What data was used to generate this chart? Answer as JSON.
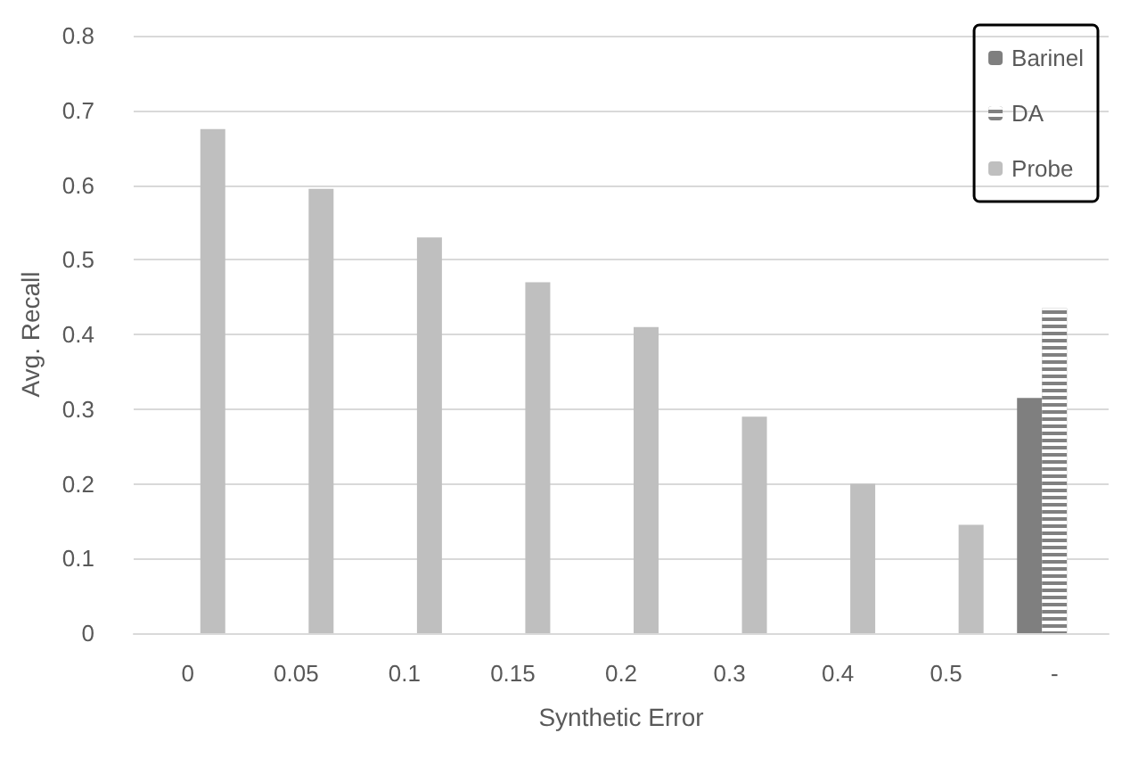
{
  "chart_data": {
    "type": "bar",
    "xlabel": "Synthetic Error",
    "ylabel": "Avg. Recall",
    "categories": [
      "0",
      "0.05",
      "0.1",
      "0.15",
      "0.2",
      "0.3",
      "0.4",
      "0.5",
      "-"
    ],
    "series": [
      {
        "name": "Barinel",
        "color": "#7f7f7f",
        "values": [
          null,
          null,
          null,
          null,
          null,
          null,
          null,
          null,
          0.315
        ]
      },
      {
        "name": "DA",
        "color": "#808080",
        "values": [
          null,
          null,
          null,
          null,
          null,
          null,
          null,
          null,
          0.435
        ]
      },
      {
        "name": "Probe",
        "color": "#bfbfbf",
        "values": [
          0.675,
          0.595,
          0.53,
          0.47,
          0.41,
          0.29,
          0.2,
          0.145,
          null
        ]
      }
    ],
    "ylim": [
      0,
      0.8
    ],
    "yticks": [
      0,
      0.1,
      0.2,
      0.3,
      0.4,
      0.5,
      0.6,
      0.7,
      0.8
    ],
    "grid": "y",
    "legend": "top right"
  }
}
